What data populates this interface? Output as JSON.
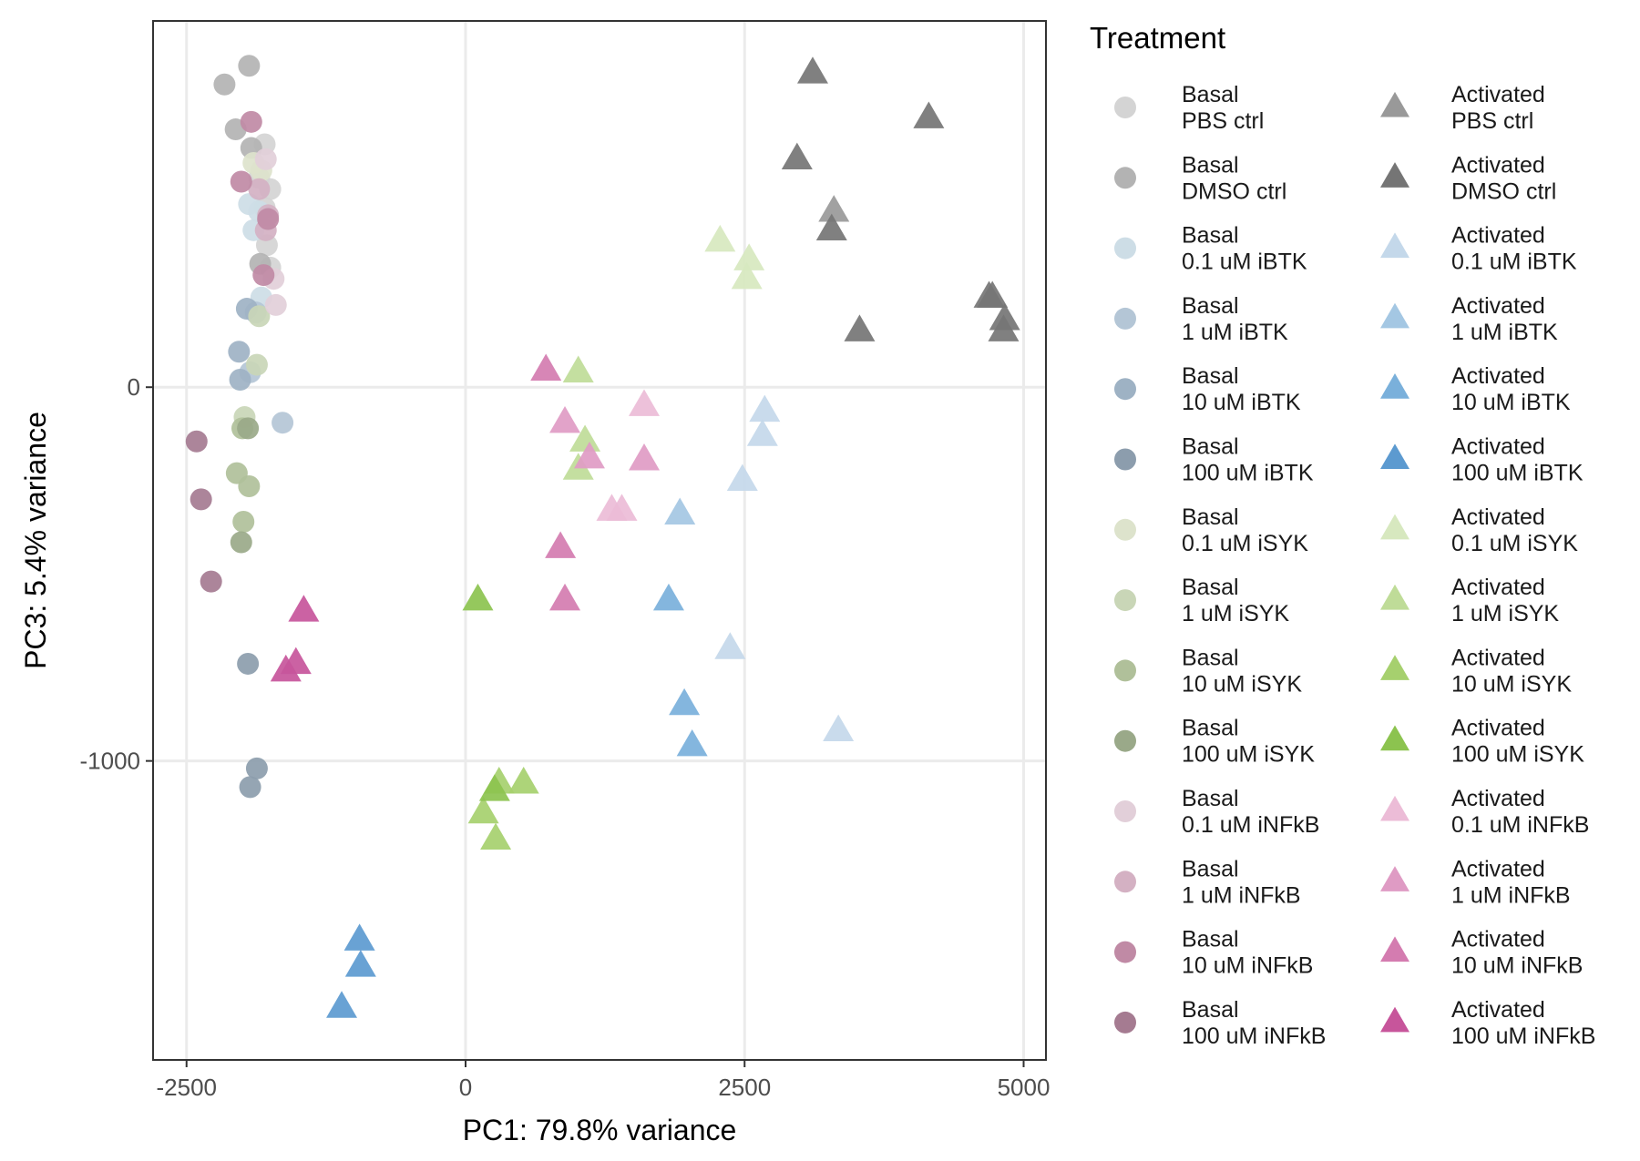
{
  "chart_data": {
    "type": "scatter",
    "xlabel": "PC1: 79.8% variance",
    "ylabel": "PC3: 5.4% variance",
    "xlim": [
      -2800,
      5200
    ],
    "ylim": [
      -1800,
      980
    ],
    "x_ticks": [
      -2500,
      0,
      2500,
      5000
    ],
    "x_tick_labels": [
      "-2500",
      "0",
      "2500",
      "5000"
    ],
    "y_ticks": [
      -1000,
      0
    ],
    "y_tick_labels": [
      "-1000",
      "0"
    ],
    "grid": true,
    "legend": {
      "title": "Treatment",
      "position": "right",
      "columns": 2
    },
    "series": [
      {
        "name": [
          "Basal",
          "PBS ctrl"
        ],
        "shape": "circle",
        "color": "#d4d4d4",
        "points": [
          [
            -1800,
            650
          ],
          [
            -1850,
            560
          ],
          [
            -1750,
            530
          ],
          [
            -1800,
            480
          ],
          [
            -1780,
            380
          ],
          [
            -1750,
            320
          ]
        ]
      },
      {
        "name": [
          "Basal",
          "DMSO ctrl"
        ],
        "shape": "circle",
        "color": "#b3b3b3",
        "points": [
          [
            -1940,
            860
          ],
          [
            -2160,
            810
          ],
          [
            -2060,
            690
          ],
          [
            -1920,
            640
          ],
          [
            -1840,
            330
          ]
        ]
      },
      {
        "name": [
          "Basal",
          "0.1 uM iBTK"
        ],
        "shape": "circle",
        "color": "#cddde6",
        "points": [
          [
            -1940,
            490
          ],
          [
            -1900,
            420
          ],
          [
            -1850,
            470
          ],
          [
            -1830,
            240
          ]
        ]
      },
      {
        "name": [
          "Basal",
          "1 uM iBTK"
        ],
        "shape": "circle",
        "color": "#b4c6d6",
        "points": [
          [
            -1880,
            200
          ],
          [
            -1930,
            40
          ],
          [
            -1640,
            -95
          ]
        ]
      },
      {
        "name": [
          "Basal",
          "10 uM iBTK"
        ],
        "shape": "circle",
        "color": "#9eb2c4",
        "points": [
          [
            -1960,
            210
          ],
          [
            -2030,
            95
          ],
          [
            -2020,
            20
          ]
        ]
      },
      {
        "name": [
          "Basal",
          "100 uM iBTK"
        ],
        "shape": "circle",
        "color": "#8c9dad",
        "points": [
          [
            -1950,
            -740
          ],
          [
            -1870,
            -1020
          ],
          [
            -1930,
            -1070
          ]
        ]
      },
      {
        "name": [
          "Basal",
          "0.1 uM iSYK"
        ],
        "shape": "circle",
        "color": "#dde3cc",
        "points": [
          [
            -1900,
            600
          ],
          [
            -1830,
            580
          ]
        ]
      },
      {
        "name": [
          "Basal",
          "1 uM iSYK"
        ],
        "shape": "circle",
        "color": "#c9d6b7",
        "points": [
          [
            -1850,
            190
          ],
          [
            -1870,
            60
          ],
          [
            -1980,
            -80
          ]
        ]
      },
      {
        "name": [
          "Basal",
          "10 uM iSYK"
        ],
        "shape": "circle",
        "color": "#b0c09a",
        "points": [
          [
            -2050,
            -230
          ],
          [
            -1940,
            -265
          ],
          [
            -1990,
            -360
          ],
          [
            -2000,
            -110
          ]
        ]
      },
      {
        "name": [
          "Basal",
          "100 uM iSYK"
        ],
        "shape": "circle",
        "color": "#9aa989",
        "points": [
          [
            -2010,
            -415
          ],
          [
            -1950,
            -110
          ]
        ]
      },
      {
        "name": [
          "Basal",
          "0.1 uM iNFkB"
        ],
        "shape": "circle",
        "color": "#e2cfd9",
        "points": [
          [
            -1790,
            610
          ],
          [
            -1720,
            290
          ],
          [
            -1700,
            220
          ]
        ]
      },
      {
        "name": [
          "Basal",
          "1 uM iNFkB"
        ],
        "shape": "circle",
        "color": "#d4b1c3",
        "points": [
          [
            -1790,
            420
          ],
          [
            -1770,
            460
          ],
          [
            -1850,
            530
          ]
        ]
      },
      {
        "name": [
          "Basal",
          "10 uM iNFkB"
        ],
        "shape": "circle",
        "color": "#c08aa5",
        "points": [
          [
            -1920,
            710
          ],
          [
            -2010,
            550
          ],
          [
            -1770,
            450
          ],
          [
            -1810,
            300
          ]
        ]
      },
      {
        "name": [
          "Basal",
          "100 uM iNFkB"
        ],
        "shape": "circle",
        "color": "#a57b91",
        "points": [
          [
            -2410,
            -145
          ],
          [
            -2370,
            -300
          ],
          [
            -2280,
            -520
          ]
        ]
      },
      {
        "name": [
          "Activated",
          "PBS ctrl"
        ],
        "shape": "triangle",
        "color": "#999999",
        "points": [
          [
            3300,
            470
          ]
        ]
      },
      {
        "name": [
          "Activated",
          "DMSO ctrl"
        ],
        "shape": "triangle",
        "color": "#757575",
        "points": [
          [
            3110,
            840
          ],
          [
            4150,
            720
          ],
          [
            2970,
            610
          ],
          [
            3280,
            420
          ],
          [
            4720,
            240
          ],
          [
            4830,
            180
          ],
          [
            4820,
            150
          ],
          [
            3530,
            150
          ],
          [
            4690,
            240
          ]
        ]
      },
      {
        "name": [
          "Activated",
          "0.1 uM iBTK"
        ],
        "shape": "triangle",
        "color": "#c4d8ea",
        "points": [
          [
            2680,
            -65
          ],
          [
            2660,
            -130
          ],
          [
            2480,
            -250
          ],
          [
            3340,
            -920
          ],
          [
            2370,
            -700
          ]
        ]
      },
      {
        "name": [
          "Activated",
          "1 uM iBTK"
        ],
        "shape": "triangle",
        "color": "#a4c7e3",
        "points": [
          [
            1920,
            -340
          ]
        ]
      },
      {
        "name": [
          "Activated",
          "10 uM iBTK"
        ],
        "shape": "triangle",
        "color": "#7ab0db",
        "points": [
          [
            1820,
            -570
          ],
          [
            1960,
            -850
          ],
          [
            2030,
            -960
          ]
        ]
      },
      {
        "name": [
          "Activated",
          "100 uM iBTK"
        ],
        "shape": "triangle",
        "color": "#5c9ad0",
        "points": [
          [
            -950,
            -1480
          ],
          [
            -940,
            -1550
          ],
          [
            -1110,
            -1660
          ]
        ]
      },
      {
        "name": [
          "Activated",
          "0.1 uM iSYK"
        ],
        "shape": "triangle",
        "color": "#d7e8bf",
        "points": [
          [
            2280,
            390
          ],
          [
            2540,
            340
          ],
          [
            2520,
            290
          ]
        ]
      },
      {
        "name": [
          "Activated",
          "1 uM iSYK"
        ],
        "shape": "triangle",
        "color": "#bfdc98",
        "points": [
          [
            1010,
            40
          ],
          [
            1070,
            -145
          ],
          [
            1010,
            -220
          ]
        ]
      },
      {
        "name": [
          "Activated",
          "10 uM iSYK"
        ],
        "shape": "triangle",
        "color": "#a6d06e",
        "points": [
          [
            520,
            -1060
          ],
          [
            300,
            -1060
          ],
          [
            270,
            -1210
          ],
          [
            160,
            -1140
          ]
        ]
      },
      {
        "name": [
          "Activated",
          "100 uM iSYK"
        ],
        "shape": "triangle",
        "color": "#8cc34f",
        "points": [
          [
            110,
            -570
          ],
          [
            260,
            -1080
          ]
        ]
      },
      {
        "name": [
          "Activated",
          "0.1 uM iNFkB"
        ],
        "shape": "triangle",
        "color": "#ecbcd7",
        "points": [
          [
            1600,
            -50
          ],
          [
            1310,
            -330
          ],
          [
            1400,
            -330
          ]
        ]
      },
      {
        "name": [
          "Activated",
          "1 uM iNFkB"
        ],
        "shape": "triangle",
        "color": "#df9bc4",
        "points": [
          [
            890,
            -95
          ],
          [
            1110,
            -190
          ],
          [
            1600,
            -195
          ]
        ]
      },
      {
        "name": [
          "Activated",
          "10 uM iNFkB"
        ],
        "shape": "triangle",
        "color": "#d47cb0",
        "points": [
          [
            850,
            -430
          ],
          [
            890,
            -570
          ],
          [
            720,
            45
          ]
        ]
      },
      {
        "name": [
          "Activated",
          "100 uM iNFkB"
        ],
        "shape": "triangle",
        "color": "#c7559b",
        "points": [
          [
            -1450,
            -600
          ],
          [
            -1520,
            -740
          ],
          [
            -1610,
            -760
          ]
        ]
      }
    ]
  }
}
